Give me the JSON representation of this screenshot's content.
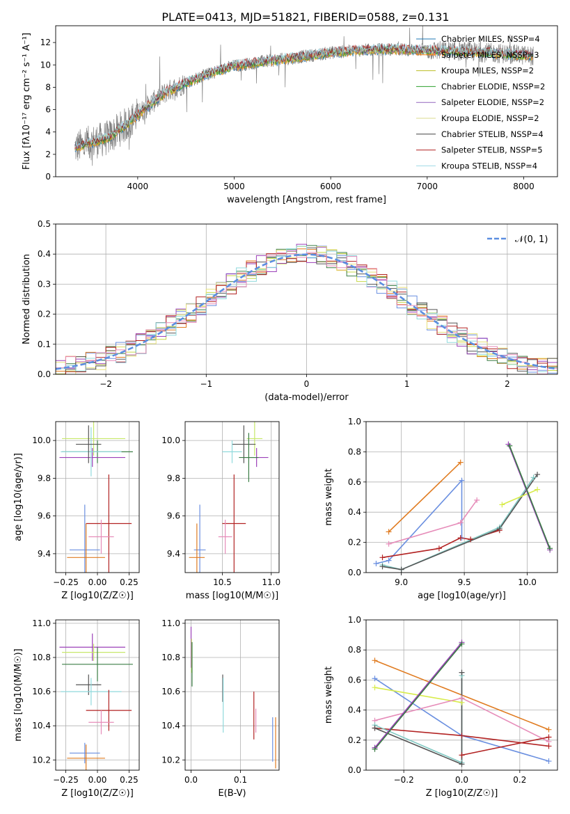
{
  "figure": {
    "title": "PLATE=0413, MJD=51821, FIBERID=0588, z=0.131"
  },
  "chart_data": [
    {
      "id": "spectrum",
      "type": "line",
      "xlabel": "wavelength [Angstrom, rest frame]",
      "ylabel": "Flux [fλ10⁻¹⁷ erg cm⁻² s⁻¹ A⁻¹]",
      "xlim": [
        3150,
        8350
      ],
      "ylim": [
        0,
        13.5
      ],
      "xticks": [
        4000,
        5000,
        6000,
        7000,
        8000
      ],
      "yticks": [
        0,
        2,
        4,
        6,
        8,
        10,
        12
      ],
      "grid": false,
      "legend_position": "top-right",
      "series": [
        {
          "name": "Chabrier MILES, NSSP=4",
          "color": "#1f77b4"
        },
        {
          "name": "Salpeter MILES, NSSP=3",
          "color": "#ff7f0e"
        },
        {
          "name": "Kroupa MILES, NSSP=2",
          "color": "#bcbd22"
        },
        {
          "name": "Chabrier ELODIE, NSSP=2",
          "color": "#2ca02c"
        },
        {
          "name": "Salpeter ELODIE, NSSP=2",
          "color": "#9467bd"
        },
        {
          "name": "Kroupa ELODIE, NSSP=2",
          "color": "#dbdb8d"
        },
        {
          "name": "Chabrier STELIB, NSSP=4",
          "color": "#444444"
        },
        {
          "name": "Salpeter STELIB, NSSP=5",
          "color": "#b22222"
        },
        {
          "name": "Kroupa STELIB, NSSP=4",
          "color": "#9edae5"
        }
      ],
      "continuum": {
        "x": [
          3350,
          3500,
          3700,
          3900,
          4100,
          4300,
          4500,
          4800,
          5000,
          5300,
          5600,
          6000,
          6300,
          6600,
          7000,
          7400,
          7800,
          8100
        ],
        "y": [
          2.6,
          3.0,
          3.5,
          4.8,
          6.3,
          7.6,
          8.4,
          9.4,
          9.9,
          10.3,
          10.6,
          11.1,
          11.3,
          11.4,
          11.3,
          11.2,
          11.0,
          10.8
        ]
      },
      "data_span": [
        3350,
        8100
      ],
      "model_span": [
        3350,
        8100
      ]
    },
    {
      "id": "residuals",
      "type": "bar",
      "xlabel": "(data-model)/error",
      "ylabel": "Normed distribution",
      "xlim": [
        -2.5,
        2.5
      ],
      "ylim": [
        0,
        0.5
      ],
      "xticks": [
        -2,
        -1,
        0,
        1,
        2
      ],
      "yticks": [
        0.0,
        0.1,
        0.2,
        0.3,
        0.4,
        0.5
      ],
      "grid": true,
      "legend_position": "top-right",
      "legend": "𝒩(0, 1)",
      "bin_width": 0.1,
      "series_colors": [
        "#6a8fe0",
        "#e07b20",
        "#c7d84a",
        "#3a7d44",
        "#9b3fb8",
        "#e6e07a",
        "#555555",
        "#b22222",
        "#8fd9dc",
        "#e68cb9"
      ]
    },
    {
      "id": "age-vs-Z",
      "type": "scatter",
      "xlabel": "Z [log10(Z/Z☉)]",
      "ylabel": "age  [log10(age/yr)]",
      "xlim": [
        -0.33,
        0.33
      ],
      "ylim": [
        9.3,
        10.1
      ],
      "xticks": [
        -0.25,
        0.0,
        0.25
      ],
      "xticklabels": [
        "−0.25",
        "0.00",
        "0.25"
      ],
      "yticks": [
        9.4,
        9.6,
        9.8,
        10.0
      ],
      "grid": true,
      "points": [
        {
          "x": -0.03,
          "y": 10.01,
          "xerr": 0.25,
          "yerr": 0.09,
          "color": "#c7e86a"
        },
        {
          "x": 0.0,
          "y": 9.94,
          "xerr": 0.28,
          "yerr": 0.06,
          "color": "#3a7d44"
        },
        {
          "x": -0.04,
          "y": 9.91,
          "xerr": 0.26,
          "yerr": 0.05,
          "color": "#9b3fb8"
        },
        {
          "x": -0.05,
          "y": 9.94,
          "xerr": 0.24,
          "yerr": 0.13,
          "color": "#8fd9dc"
        },
        {
          "x": -0.07,
          "y": 9.98,
          "xerr": 0.1,
          "yerr": 0.1,
          "color": "#555555"
        },
        {
          "x": 0.09,
          "y": 9.56,
          "xerr": 0.18,
          "yerr": 0.26,
          "color": "#b22222"
        },
        {
          "x": 0.03,
          "y": 9.49,
          "xerr": 0.1,
          "yerr": 0.09,
          "color": "#e68cb9"
        },
        {
          "x": -0.1,
          "y": 9.42,
          "xerr": 0.12,
          "yerr": 0.24,
          "color": "#6a8fe0"
        },
        {
          "x": -0.09,
          "y": 9.38,
          "xerr": 0.15,
          "yerr": 0.18,
          "color": "#e07b20"
        }
      ]
    },
    {
      "id": "age-vs-mass",
      "type": "scatter",
      "xlabel": "mass [log10(M/M☉)]",
      "ylabel": "",
      "xlim": [
        10.12,
        11.08
      ],
      "ylim": [
        9.3,
        10.1
      ],
      "xticks": [
        10.5,
        11.0
      ],
      "yticks": [
        9.4,
        9.6,
        9.8,
        10.0
      ],
      "grid": true,
      "points": [
        {
          "x": 10.83,
          "y": 10.01,
          "xerr": 0.08,
          "yerr": 0.09,
          "color": "#c7e86a"
        },
        {
          "x": 10.72,
          "y": 9.98,
          "xerr": 0.12,
          "yerr": 0.1,
          "color": "#555555"
        },
        {
          "x": 10.85,
          "y": 9.91,
          "xerr": 0.12,
          "yerr": 0.05,
          "color": "#9b3fb8"
        },
        {
          "x": 10.77,
          "y": 9.91,
          "xerr": 0.1,
          "yerr": 0.13,
          "color": "#3a7d44"
        },
        {
          "x": 10.6,
          "y": 9.94,
          "xerr": 0.1,
          "yerr": 0.06,
          "color": "#8fd9dc"
        },
        {
          "x": 10.62,
          "y": 9.56,
          "xerr": 0.12,
          "yerr": 0.26,
          "color": "#b22222"
        },
        {
          "x": 10.53,
          "y": 9.49,
          "xerr": 0.07,
          "yerr": 0.09,
          "color": "#e68cb9"
        },
        {
          "x": 10.27,
          "y": 9.42,
          "xerr": 0.06,
          "yerr": 0.24,
          "color": "#6a8fe0"
        },
        {
          "x": 10.24,
          "y": 9.38,
          "xerr": 0.08,
          "yerr": 0.18,
          "color": "#e07b20"
        }
      ]
    },
    {
      "id": "weight-vs-age",
      "type": "line",
      "xlabel": "age  [log10(age/yr)]",
      "ylabel": "mass weight",
      "xlim": [
        8.72,
        10.24
      ],
      "ylim": [
        0,
        1
      ],
      "xticks": [
        9.0,
        9.5,
        10.0
      ],
      "yticks": [
        0.0,
        0.2,
        0.4,
        0.6,
        0.8,
        1.0
      ],
      "grid": true,
      "series": [
        {
          "color": "#e07b20",
          "x": [
            8.9,
            9.47
          ],
          "y": [
            0.27,
            0.73
          ]
        },
        {
          "color": "#6a8fe0",
          "x": [
            8.8,
            8.9,
            9.48,
            9.48
          ],
          "y": [
            0.06,
            0.08,
            0.61,
            0.23
          ]
        },
        {
          "color": "#e68cb9",
          "x": [
            8.9,
            9.47,
            9.6
          ],
          "y": [
            0.19,
            0.33,
            0.48
          ]
        },
        {
          "color": "#b22222",
          "x": [
            8.85,
            9.3,
            9.47,
            9.55,
            9.78
          ],
          "y": [
            0.1,
            0.16,
            0.23,
            0.22,
            0.28
          ]
        },
        {
          "color": "#7fc8c2",
          "x": [
            8.85,
            9.0,
            9.78,
            10.05
          ],
          "y": [
            0.05,
            0.02,
            0.3,
            0.63
          ]
        },
        {
          "color": "#555555",
          "x": [
            8.85,
            9.0,
            9.78,
            10.08
          ],
          "y": [
            0.04,
            0.02,
            0.29,
            0.65
          ]
        },
        {
          "color": "#d8ec4a",
          "x": [
            9.8,
            10.08
          ],
          "y": [
            0.45,
            0.55
          ]
        },
        {
          "color": "#9b3fb8",
          "x": [
            9.85,
            10.18
          ],
          "y": [
            0.85,
            0.15
          ]
        },
        {
          "color": "#3a7d44",
          "x": [
            9.86,
            10.18
          ],
          "y": [
            0.84,
            0.16
          ]
        }
      ]
    },
    {
      "id": "mass-vs-Z",
      "type": "scatter",
      "xlabel": "Z [log10(Z/Z☉)]",
      "ylabel": "mass [log10(M/M☉)]",
      "xlim": [
        -0.33,
        0.33
      ],
      "ylim": [
        10.14,
        11.02
      ],
      "xticks": [
        -0.25,
        0.0,
        0.25
      ],
      "xticklabels": [
        "−0.25",
        "0.00",
        "0.25"
      ],
      "yticks": [
        10.2,
        10.4,
        10.6,
        10.8,
        11.0
      ],
      "grid": true,
      "points": [
        {
          "x": -0.04,
          "y": 10.86,
          "xerr": 0.26,
          "yerr": 0.08,
          "color": "#9b3fb8"
        },
        {
          "x": -0.03,
          "y": 10.83,
          "xerr": 0.25,
          "yerr": 0.05,
          "color": "#c7e86a"
        },
        {
          "x": 0.0,
          "y": 10.76,
          "xerr": 0.28,
          "yerr": 0.1,
          "color": "#3a7d44"
        },
        {
          "x": -0.07,
          "y": 10.64,
          "xerr": 0.1,
          "yerr": 0.06,
          "color": "#555555"
        },
        {
          "x": -0.05,
          "y": 10.6,
          "xerr": 0.24,
          "yerr": 0.08,
          "color": "#8fd9dc"
        },
        {
          "x": 0.09,
          "y": 10.49,
          "xerr": 0.18,
          "yerr": 0.12,
          "color": "#b22222"
        },
        {
          "x": 0.03,
          "y": 10.42,
          "xerr": 0.1,
          "yerr": 0.07,
          "color": "#e68cb9"
        },
        {
          "x": -0.1,
          "y": 10.24,
          "xerr": 0.12,
          "yerr": 0.06,
          "color": "#6a8fe0"
        },
        {
          "x": -0.09,
          "y": 10.21,
          "xerr": 0.15,
          "yerr": 0.08,
          "color": "#e07b20"
        }
      ]
    },
    {
      "id": "mass-vs-ebv",
      "type": "scatter",
      "xlabel": "E(B-V)",
      "ylabel": "",
      "xlim": [
        -0.012,
        0.178
      ],
      "ylim": [
        10.14,
        11.02
      ],
      "xticks": [
        0.0,
        0.1
      ],
      "yticks": [
        10.2,
        10.4,
        10.6,
        10.8,
        11.0
      ],
      "grid": true,
      "points": [
        {
          "x": 0.0,
          "y": 10.86,
          "yerr": 0.12,
          "color": "#9b3fb8"
        },
        {
          "x": 0.001,
          "y": 10.81,
          "yerr": 0.1,
          "color": "#c7e86a"
        },
        {
          "x": 0.002,
          "y": 10.76,
          "yerr": 0.13,
          "color": "#3a7d44"
        },
        {
          "x": 0.064,
          "y": 10.62,
          "yerr": 0.08,
          "color": "#555555"
        },
        {
          "x": 0.065,
          "y": 10.52,
          "yerr": 0.16,
          "color": "#8fd9dc"
        },
        {
          "x": 0.127,
          "y": 10.46,
          "yerr": 0.14,
          "color": "#b22222"
        },
        {
          "x": 0.131,
          "y": 10.43,
          "yerr": 0.07,
          "color": "#e68cb9"
        },
        {
          "x": 0.165,
          "y": 10.32,
          "yerr": 0.13,
          "color": "#6a8fe0"
        },
        {
          "x": 0.171,
          "y": 10.3,
          "yerr": 0.15,
          "color": "#e07b20"
        }
      ]
    },
    {
      "id": "weight-vs-Z",
      "type": "line",
      "xlabel": "Z [log10(Z/Z☉)]",
      "ylabel": "mass weight",
      "xlim": [
        -0.33,
        0.33
      ],
      "ylim": [
        0,
        1
      ],
      "xticks": [
        -0.2,
        0.0,
        0.2
      ],
      "xticklabels": [
        "−0.2",
        "0.0",
        "0.2"
      ],
      "yticks": [
        0.0,
        0.2,
        0.4,
        0.6,
        0.8,
        1.0
      ],
      "grid": true,
      "series": [
        {
          "color": "#e07b20",
          "x": [
            -0.3,
            0.3
          ],
          "y": [
            0.73,
            0.27
          ]
        },
        {
          "color": "#6a8fe0",
          "x": [
            -0.3,
            0.0,
            0.3
          ],
          "y": [
            0.61,
            0.23,
            0.06
          ]
        },
        {
          "color": "#d8ec4a",
          "x": [
            -0.3,
            0.0
          ],
          "y": [
            0.55,
            0.45
          ]
        },
        {
          "color": "#e68cb9",
          "x": [
            -0.3,
            0.0,
            0.3
          ],
          "y": [
            0.33,
            0.48,
            0.19
          ]
        },
        {
          "color": "#b22222",
          "x": [
            -0.3,
            0.0,
            0.3
          ],
          "y": [
            0.28,
            0.23,
            0.16
          ]
        },
        {
          "color": "#b22222",
          "x": [
            0.0,
            0.3
          ],
          "y": [
            0.1,
            0.22
          ]
        },
        {
          "color": "#7fc8c2",
          "x": [
            -0.3,
            0.0,
            0.0
          ],
          "y": [
            0.3,
            0.05,
            0.63
          ]
        },
        {
          "color": "#555555",
          "x": [
            -0.3,
            0.0,
            0.0
          ],
          "y": [
            0.28,
            0.04,
            0.65
          ]
        },
        {
          "color": "#9b3fb8",
          "x": [
            -0.3,
            0.0
          ],
          "y": [
            0.15,
            0.85
          ]
        },
        {
          "color": "#3a7d44",
          "x": [
            -0.3,
            0.0
          ],
          "y": [
            0.14,
            0.84
          ]
        }
      ]
    }
  ]
}
